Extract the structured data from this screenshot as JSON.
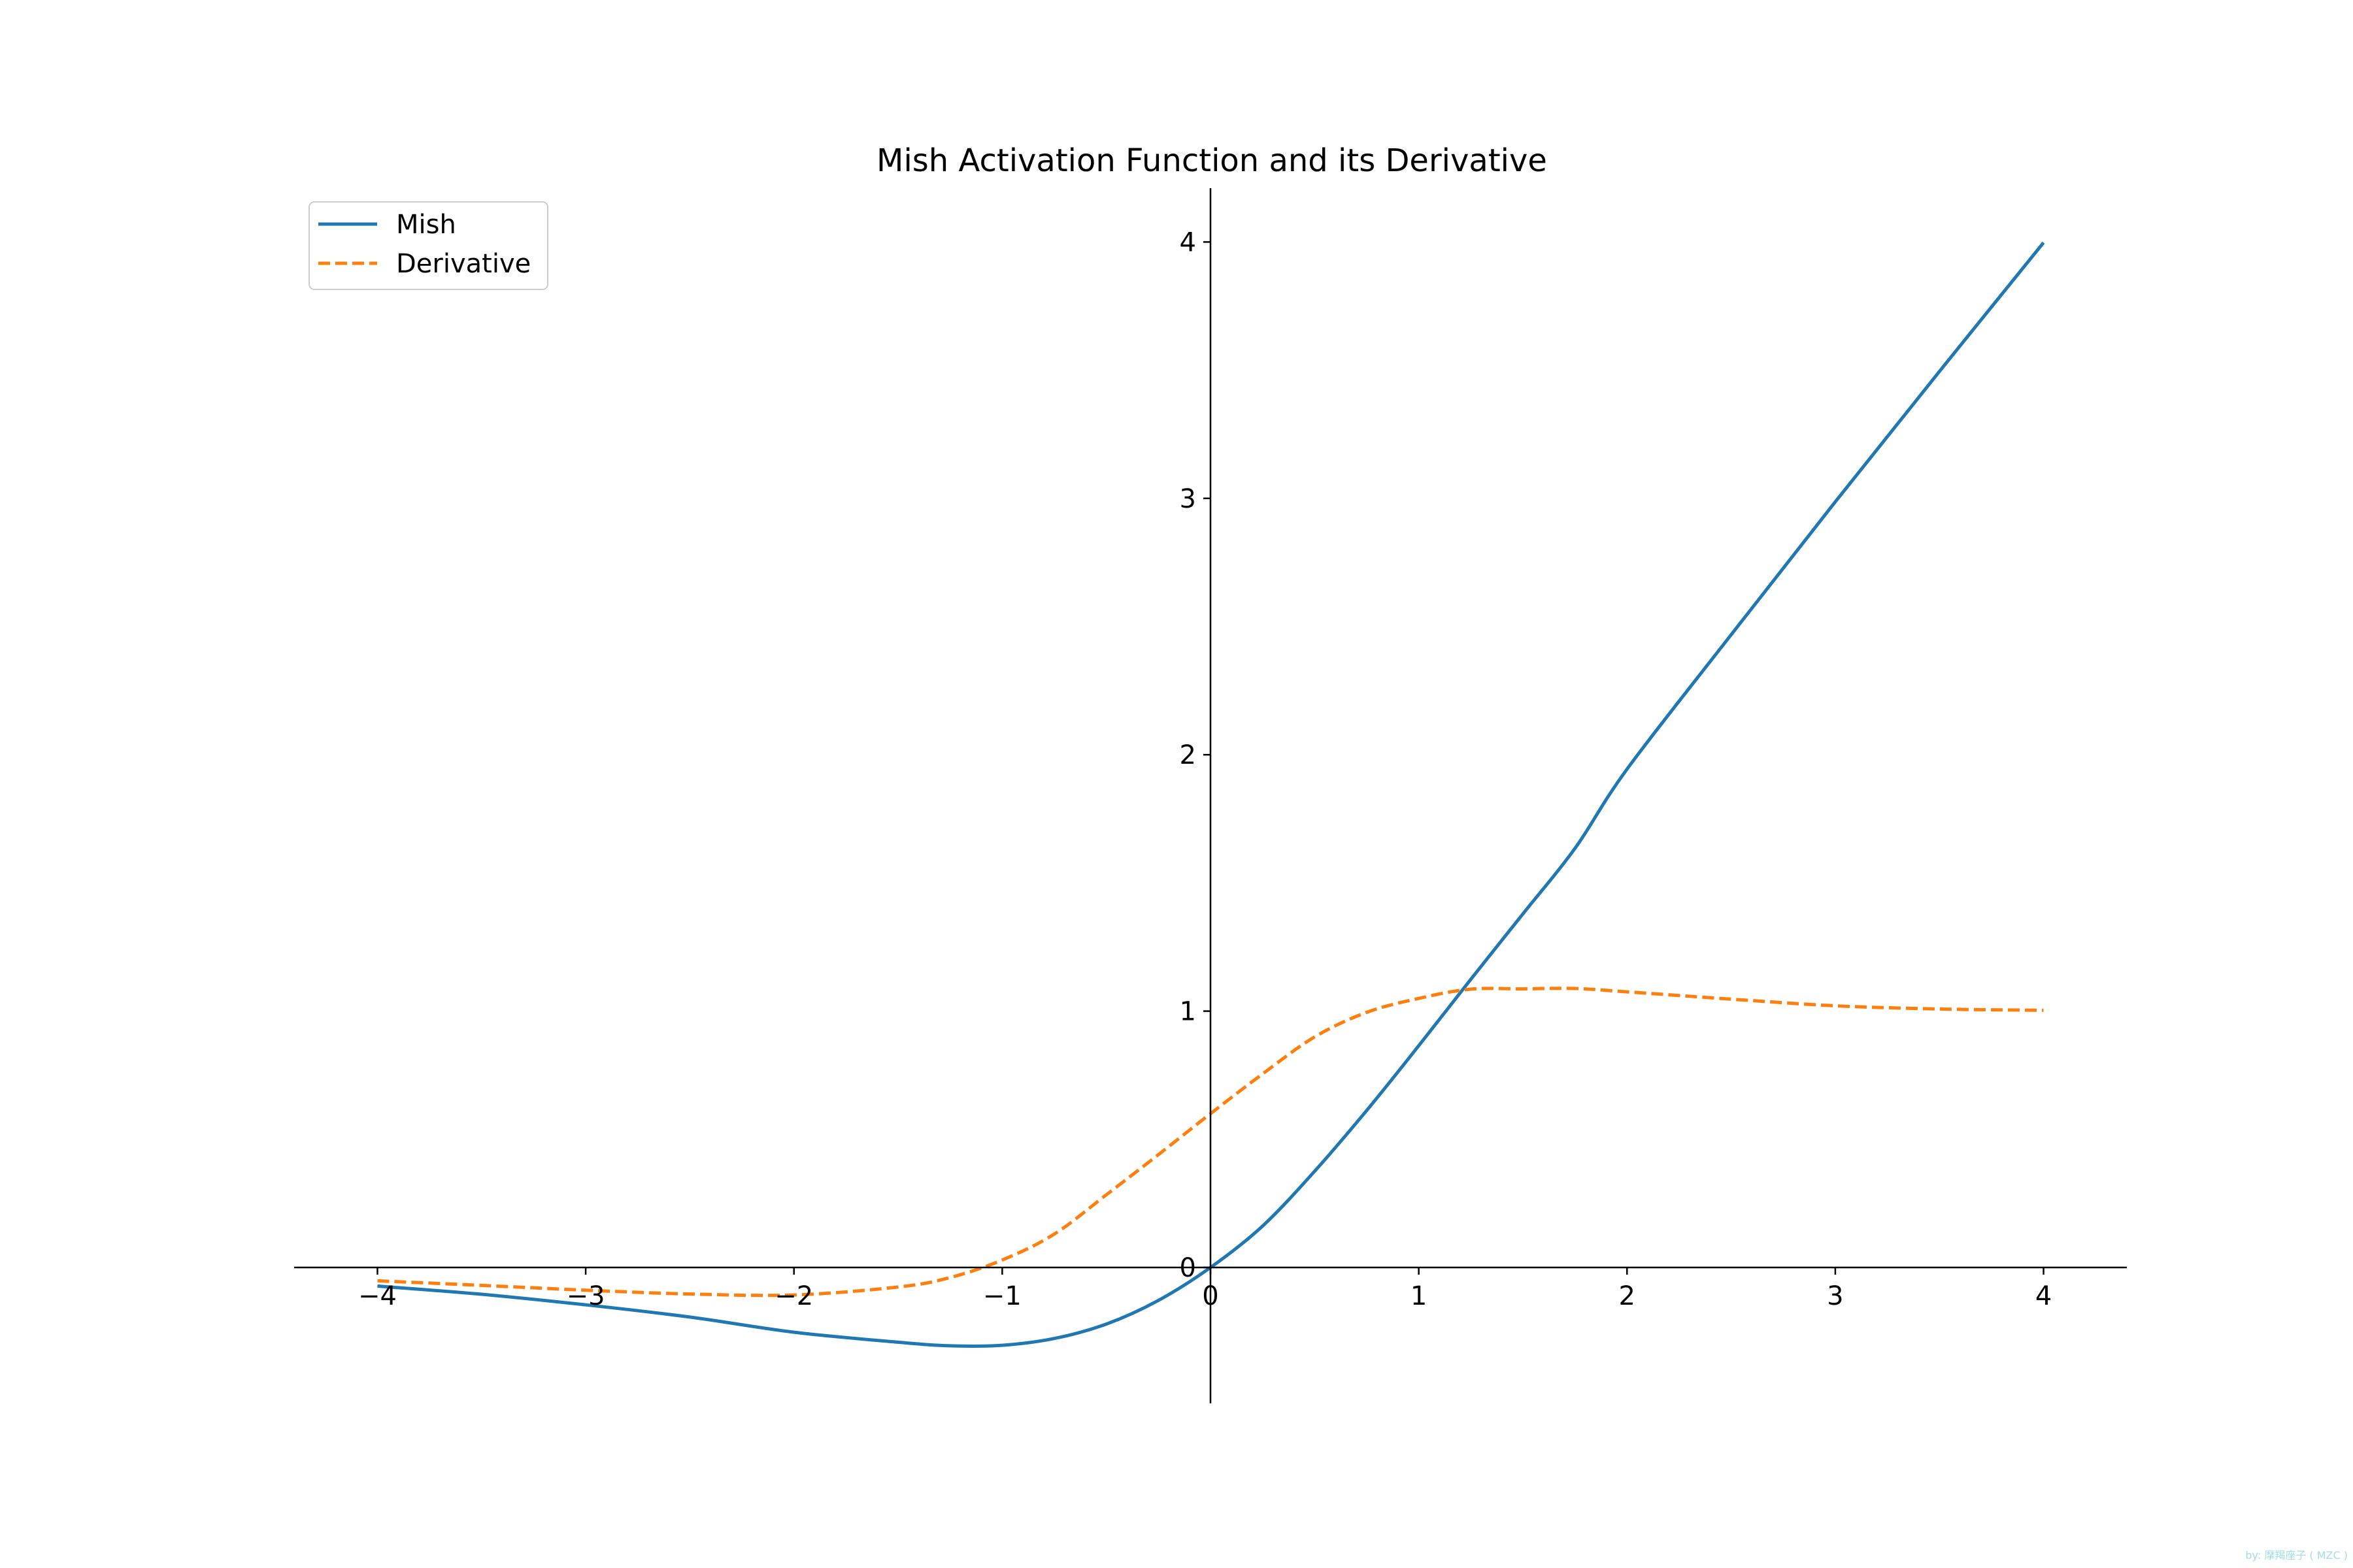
{
  "chart_data": {
    "type": "line",
    "title": "Mish Activation Function and its Derivative",
    "xlabel": "",
    "ylabel": "",
    "xlim": [
      -4.4,
      4.4
    ],
    "ylim": [
      -0.53,
      4.21
    ],
    "x_ticks": [
      -4,
      -3,
      -2,
      -1,
      0,
      1,
      2,
      3,
      4
    ],
    "x_tick_labels": [
      "−4",
      "−3",
      "−2",
      "−1",
      "0",
      "1",
      "2",
      "3",
      "4"
    ],
    "y_ticks": [
      0,
      1,
      2,
      3,
      4
    ],
    "y_tick_labels": [
      "0",
      "1",
      "2",
      "3",
      "4"
    ],
    "spines": "centered at origin",
    "grid": false,
    "legend_position": "upper-left",
    "x": [
      -4.0,
      -3.5,
      -3.0,
      -2.5,
      -2.0,
      -1.5,
      -1.25,
      -1.0,
      -0.75,
      -0.5,
      -0.25,
      0.0,
      0.25,
      0.5,
      0.75,
      1.0,
      1.25,
      1.5,
      1.75,
      2.0,
      2.5,
      3.0,
      3.5,
      4.0
    ],
    "series": [
      {
        "name": "Mish",
        "color": "#1f77b4",
        "style": "solid",
        "values": [
          -0.0726,
          -0.1045,
          -0.1456,
          -0.1933,
          -0.2525,
          -0.2914,
          -0.3054,
          -0.3034,
          -0.2769,
          -0.2207,
          -0.1283,
          0.0,
          0.1617,
          0.3754,
          0.6124,
          0.8651,
          1.1241,
          1.3793,
          1.6345,
          1.944,
          2.4681,
          2.9865,
          3.4949,
          3.9974
        ]
      },
      {
        "name": "Derivative",
        "color": "#ff7f0e",
        "style": "dashed",
        "values": [
          -0.0519,
          -0.0697,
          -0.0887,
          -0.1035,
          -0.1072,
          -0.0762,
          -0.0391,
          0.0291,
          0.1302,
          0.2836,
          0.4401,
          0.6,
          0.7549,
          0.8994,
          0.9952,
          1.0496,
          1.0857,
          1.0867,
          1.0883,
          1.0752,
          1.0466,
          1.0208,
          1.0082,
          1.0031
        ]
      }
    ]
  },
  "watermark": "by: 摩羯座子 ( MZC )"
}
